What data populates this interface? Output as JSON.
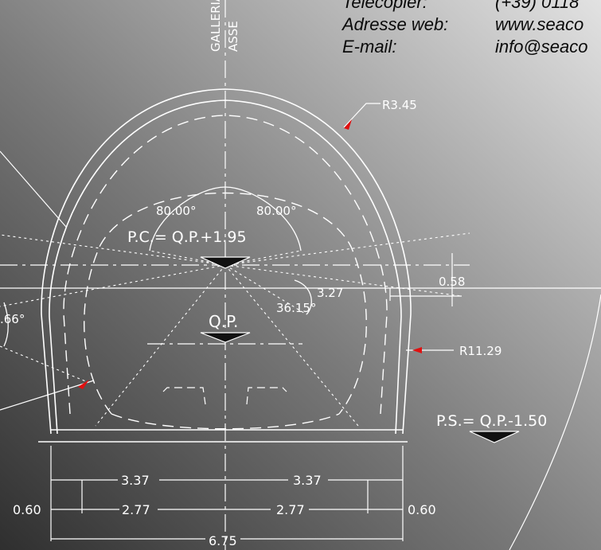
{
  "header": {
    "line1_label": "Telecopier:",
    "line1_value": "(+39) 0118",
    "web_label": "Adresse web:",
    "web_value": "www.seaco",
    "email_label": "E-mail:",
    "email_value": "info@seaco"
  },
  "drawing": {
    "axis_label_top": "GALLERIA",
    "axis_label_bottom": "ASSE",
    "radius_outer": "R3.45",
    "radius_side": "R11.29",
    "angle_left": "80.00°",
    "angle_right": "80.00°",
    "pc_label": "P.C.= Q.P.+1.95",
    "offset_dim": "3.27",
    "angle_center": "36.15°",
    "qp_label": "Q.P.",
    "side_gap": "0.58",
    "left_angle_partial": ".66°",
    "ps_label": "P.S.= Q.P.-1.50",
    "dims": {
      "left_upper": "3.37",
      "right_upper": "3.37",
      "left_lower": "2.77",
      "right_lower": "2.77",
      "edge_left": "0.60",
      "edge_right": "0.60",
      "total_width": "6.75"
    }
  },
  "colors": {
    "bg_dark": "#3a3a3a",
    "bg_light": "#d6d6d6",
    "line": "#ffffff",
    "marker_red": "#e01010"
  }
}
